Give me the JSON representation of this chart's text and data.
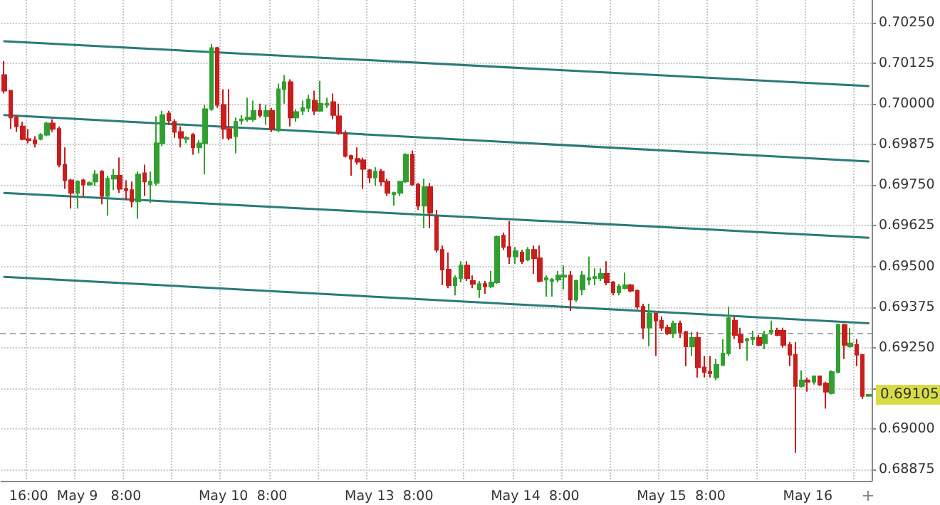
{
  "chart_data": {
    "type": "candlestick",
    "categories": [
      null,
      null,
      null,
      null,
      "16:00",
      null,
      null,
      null,
      null,
      null,
      null,
      null,
      "May 9",
      null,
      null,
      null,
      null,
      null,
      null,
      null,
      "8:00",
      null,
      null,
      null,
      null,
      null,
      null,
      null,
      null,
      null,
      null,
      null,
      null,
      null,
      null,
      null,
      "May 10",
      null,
      null,
      null,
      null,
      null,
      null,
      null,
      "8:00",
      null,
      null,
      null,
      null,
      null,
      null,
      null,
      null,
      null,
      null,
      null,
      null,
      null,
      null,
      null,
      "May 13",
      null,
      null,
      null,
      null,
      null,
      null,
      null,
      "8:00",
      null,
      null,
      null,
      null,
      null,
      null,
      null,
      null,
      null,
      null,
      null,
      null,
      null,
      null,
      null,
      "May 14",
      null,
      null,
      null,
      null,
      null,
      null,
      null,
      "8:00",
      null,
      null,
      null,
      null,
      null,
      null,
      null,
      null,
      null,
      null,
      null,
      null,
      null,
      null,
      null,
      "May 15",
      null,
      null,
      null,
      null,
      null,
      null,
      null,
      "8:00",
      null,
      null,
      null,
      null,
      null,
      null,
      null,
      null,
      null,
      null,
      null,
      null,
      null,
      null,
      null,
      "May 16",
      null,
      null,
      null,
      null,
      null,
      null,
      null,
      null,
      null,
      null
    ],
    "ohlc": [
      [
        0.70089,
        0.70132,
        0.70032,
        0.70041
      ],
      [
        0.70041,
        0.70041,
        0.69923,
        0.69958
      ],
      [
        0.69958,
        0.69966,
        0.69914,
        0.69931
      ],
      [
        0.69931,
        0.69945,
        0.69888,
        0.69892
      ],
      [
        0.69892,
        0.69923,
        0.69879,
        0.69888
      ],
      [
        0.69888,
        0.69901,
        0.69866,
        0.69879
      ],
      [
        0.69892,
        0.6991,
        0.69888,
        0.69905
      ],
      [
        0.69905,
        0.69945,
        0.69901,
        0.6994
      ],
      [
        0.6994,
        0.69953,
        0.69914,
        0.69923
      ],
      [
        0.69923,
        0.69931,
        0.69805,
        0.69813
      ],
      [
        0.69813,
        0.69866,
        0.69739,
        0.69765
      ],
      [
        0.69765,
        0.6977,
        0.69678,
        0.69726
      ],
      [
        0.69726,
        0.69765,
        0.69678,
        0.69761
      ],
      [
        0.69765,
        0.6977,
        0.69713,
        0.69752
      ],
      [
        0.69752,
        0.69761,
        0.69748,
        0.69757
      ],
      [
        0.69761,
        0.69796,
        0.69748,
        0.69783
      ],
      [
        0.69792,
        0.69796,
        0.69691,
        0.69717
      ],
      [
        0.69717,
        0.69779,
        0.69656,
        0.6977
      ],
      [
        0.6977,
        0.698,
        0.69735,
        0.69779
      ],
      [
        0.69779,
        0.69835,
        0.69726,
        0.69739
      ],
      [
        0.69739,
        0.69765,
        0.69704,
        0.69735
      ],
      [
        0.69735,
        0.69761,
        0.69682,
        0.697
      ],
      [
        0.697,
        0.69792,
        0.69647,
        0.69783
      ],
      [
        0.69787,
        0.69813,
        0.69717,
        0.69761
      ],
      [
        0.69752,
        0.69792,
        0.69695,
        0.69761
      ],
      [
        0.69757,
        0.69962,
        0.69748,
        0.69879
      ],
      [
        0.69879,
        0.69979,
        0.6987,
        0.69966
      ],
      [
        0.69971,
        0.69979,
        0.69936,
        0.69949
      ],
      [
        0.69945,
        0.69953,
        0.69896,
        0.69914
      ],
      [
        0.69914,
        0.69931,
        0.69866,
        0.69896
      ],
      [
        0.69892,
        0.69901,
        0.69879,
        0.69896
      ],
      [
        0.69905,
        0.6991,
        0.69844,
        0.69866
      ],
      [
        0.69866,
        0.69888,
        0.69848,
        0.69879
      ],
      [
        0.69879,
        0.69997,
        0.69783,
        0.69984
      ],
      [
        0.69984,
        0.70185,
        0.69979,
        0.70172
      ],
      [
        0.70172,
        0.70176,
        0.69988,
        0.69997
      ],
      [
        0.69997,
        0.70045,
        0.69892,
        0.69923
      ],
      [
        0.69923,
        0.70045,
        0.69888,
        0.69896
      ],
      [
        0.69901,
        0.69958,
        0.69848,
        0.69945
      ],
      [
        0.69949,
        0.69966,
        0.69936,
        0.69953
      ],
      [
        0.69953,
        0.70019,
        0.69945,
        0.69958
      ],
      [
        0.69953,
        0.7001,
        0.69945,
        0.69979
      ],
      [
        0.69979,
        0.70001,
        0.69958,
        0.69966
      ],
      [
        0.69962,
        0.69997,
        0.69936,
        0.69979
      ],
      [
        0.69979,
        0.69988,
        0.69914,
        0.69923
      ],
      [
        0.69918,
        0.70063,
        0.69914,
        0.70045
      ],
      [
        0.70045,
        0.70089,
        0.70001,
        0.70067
      ],
      [
        0.70067,
        0.70076,
        0.69931,
        0.69958
      ],
      [
        0.69958,
        0.69984,
        0.69945,
        0.69975
      ],
      [
        0.69979,
        0.7001,
        0.69966,
        0.69988
      ],
      [
        0.69988,
        0.70028,
        0.69975,
        0.70014
      ],
      [
        0.7001,
        0.70041,
        0.69966,
        0.69979
      ],
      [
        0.69979,
        0.70071,
        0.69975,
        0.70001
      ],
      [
        0.69997,
        0.70019,
        0.69988,
        0.70001
      ],
      [
        0.70006,
        0.70032,
        0.69953,
        0.69966
      ],
      [
        0.69962,
        0.70001,
        0.69905,
        0.6991
      ],
      [
        0.6991,
        0.69918,
        0.69835,
        0.6984
      ],
      [
        0.6984,
        0.69844,
        0.69779,
        0.69831
      ],
      [
        0.69831,
        0.69866,
        0.69813,
        0.69822
      ],
      [
        0.69827,
        0.69835,
        0.69739,
        0.698
      ],
      [
        0.69796,
        0.698,
        0.69757,
        0.69774
      ],
      [
        0.69774,
        0.69805,
        0.69748,
        0.69792
      ],
      [
        0.69792,
        0.698,
        0.69748,
        0.69761
      ],
      [
        0.69761,
        0.6977,
        0.69717,
        0.69726
      ],
      [
        0.69722,
        0.6973,
        0.69687,
        0.69726
      ],
      [
        0.69726,
        0.69761,
        0.69717,
        0.69761
      ],
      [
        0.69761,
        0.69848,
        0.69757,
        0.69844
      ],
      [
        0.69844,
        0.69857,
        0.69748,
        0.69752
      ],
      [
        0.69752,
        0.69757,
        0.69674,
        0.69687
      ],
      [
        0.69687,
        0.6977,
        0.69617,
        0.69744
      ],
      [
        0.69744,
        0.69757,
        0.69617,
        0.69665
      ],
      [
        0.69652,
        0.69674,
        0.69543,
        0.69551
      ],
      [
        0.69551,
        0.69564,
        0.69442,
        0.6949
      ],
      [
        0.6949,
        0.69543,
        0.69433,
        0.69442
      ],
      [
        0.69442,
        0.69472,
        0.69411,
        0.69464
      ],
      [
        0.69464,
        0.69516,
        0.69451,
        0.69503
      ],
      [
        0.69503,
        0.69516,
        0.69455,
        0.69464
      ],
      [
        0.69455,
        0.69472,
        0.69433,
        0.69446
      ],
      [
        0.69429,
        0.69455,
        0.69403,
        0.69446
      ],
      [
        0.69446,
        0.69455,
        0.69416,
        0.69438
      ],
      [
        0.69438,
        0.69486,
        0.69433,
        0.69451
      ],
      [
        0.69451,
        0.69595,
        0.69446,
        0.69591
      ],
      [
        0.69595,
        0.69604,
        0.69551,
        0.6956
      ],
      [
        0.6956,
        0.69639,
        0.69508,
        0.6953
      ],
      [
        0.6953,
        0.6956,
        0.69508,
        0.69547
      ],
      [
        0.69543,
        0.69551,
        0.69508,
        0.69516
      ],
      [
        0.69521,
        0.6956,
        0.69516,
        0.69551
      ],
      [
        0.69551,
        0.69564,
        0.69477,
        0.69525
      ],
      [
        0.69525,
        0.69564,
        0.69451,
        0.69455
      ],
      [
        0.69459,
        0.69472,
        0.69407,
        0.69464
      ],
      [
        0.69455,
        0.69464,
        0.69407,
        0.69459
      ],
      [
        0.69459,
        0.69486,
        0.69451,
        0.69472
      ],
      [
        0.69468,
        0.69503,
        0.69429,
        0.69472
      ],
      [
        0.69472,
        0.69486,
        0.69363,
        0.69398
      ],
      [
        0.69398,
        0.69459,
        0.6939,
        0.69455
      ],
      [
        0.69429,
        0.69486,
        0.69411,
        0.69472
      ],
      [
        0.69459,
        0.6953,
        0.69442,
        0.69464
      ],
      [
        0.69464,
        0.69494,
        0.69442,
        0.69468
      ],
      [
        0.69464,
        0.69494,
        0.69455,
        0.69477
      ],
      [
        0.69477,
        0.69516,
        0.69442,
        0.69451
      ],
      [
        0.69451,
        0.69455,
        0.69411,
        0.6942
      ],
      [
        0.6942,
        0.69446,
        0.69411,
        0.69438
      ],
      [
        0.69433,
        0.69481,
        0.69429,
        0.69442
      ],
      [
        0.69442,
        0.69446,
        0.6942,
        0.69425
      ],
      [
        0.69425,
        0.69429,
        0.69368,
        0.69376
      ],
      [
        0.69376,
        0.69385,
        0.69276,
        0.69311
      ],
      [
        0.69311,
        0.69385,
        0.69254,
        0.69355
      ],
      [
        0.69355,
        0.69355,
        0.69224,
        0.69333
      ],
      [
        0.69333,
        0.69346,
        0.69302,
        0.69311
      ],
      [
        0.69311,
        0.6932,
        0.69289,
        0.69294
      ],
      [
        0.69294,
        0.69333,
        0.6928,
        0.69324
      ],
      [
        0.69324,
        0.69333,
        0.6928,
        0.69298
      ],
      [
        0.69298,
        0.69302,
        0.69193,
        0.69254
      ],
      [
        0.69254,
        0.69298,
        0.69224,
        0.6928
      ],
      [
        0.6928,
        0.69298,
        0.69158,
        0.69189
      ],
      [
        0.69189,
        0.69224,
        0.69158,
        0.69175
      ],
      [
        0.69175,
        0.69224,
        0.69158,
        0.69171
      ],
      [
        0.69158,
        0.69215,
        0.69149,
        0.69197
      ],
      [
        0.69197,
        0.69276,
        0.69193,
        0.69232
      ],
      [
        0.69232,
        0.69376,
        0.69224,
        0.69341
      ],
      [
        0.69333,
        0.69346,
        0.69276,
        0.69289
      ],
      [
        0.69289,
        0.69311,
        0.69245,
        0.69267
      ],
      [
        0.69272,
        0.6928,
        0.6921,
        0.69276
      ],
      [
        0.69276,
        0.69302,
        0.69258,
        0.6928
      ],
      [
        0.6928,
        0.69289,
        0.69254,
        0.69258
      ],
      [
        0.69263,
        0.69302,
        0.69245,
        0.69289
      ],
      [
        0.69298,
        0.69333,
        0.69289,
        0.69302
      ],
      [
        0.69302,
        0.69311,
        0.69285,
        0.69289
      ],
      [
        0.69302,
        0.69311,
        0.6925,
        0.69258
      ],
      [
        0.69258,
        0.69267,
        0.69193,
        0.69228
      ],
      [
        0.69228,
        0.69267,
        0.68926,
        0.69132
      ],
      [
        0.69132,
        0.6918,
        0.69127,
        0.69149
      ],
      [
        0.69149,
        0.69158,
        0.69114,
        0.69145
      ],
      [
        0.69145,
        0.69162,
        0.69136,
        0.69162
      ],
      [
        0.69162,
        0.69162,
        0.69132,
        0.69136
      ],
      [
        0.6914,
        0.69145,
        0.69062,
        0.69114
      ],
      [
        0.6911,
        0.6918,
        0.69106,
        0.69175
      ],
      [
        0.69175,
        0.69324,
        0.69171,
        0.6932
      ],
      [
        0.6932,
        0.69324,
        0.69215,
        0.69258
      ],
      [
        0.69254,
        0.69311,
        0.6925,
        0.69263
      ],
      [
        0.69258,
        0.69276,
        0.69193,
        0.69228
      ],
      [
        0.69228,
        0.69228,
        0.69092,
        0.69101
      ],
      [
        0.69101,
        0.69106,
        0.69101,
        0.69105
      ]
    ],
    "colors": [
      "#c81e1e",
      "#c81e1e",
      "#c81e1e",
      "#c81e1e",
      "#c81e1e",
      "#c81e1e",
      "#30a030",
      "#30a030",
      "#c81e1e",
      "#c81e1e",
      "#c81e1e",
      "#c81e1e",
      "#30a030",
      "#c81e1e",
      "#30a030",
      "#30a030",
      "#c81e1e",
      "#30a030",
      "#30a030",
      "#c81e1e",
      "#c81e1e",
      "#c81e1e",
      "#30a030",
      "#c81e1e",
      "#30a030",
      "#30a030",
      "#30a030",
      "#c81e1e",
      "#c81e1e",
      "#c81e1e",
      "#30a030",
      "#c81e1e",
      "#30a030",
      "#30a030",
      "#30a030",
      "#c81e1e",
      "#c81e1e",
      "#c81e1e",
      "#30a030",
      "#30a030",
      "#30a030",
      "#30a030",
      "#c81e1e",
      "#30a030",
      "#c81e1e",
      "#30a030",
      "#30a030",
      "#c81e1e",
      "#30a030",
      "#30a030",
      "#30a030",
      "#c81e1e",
      "#30a030",
      "#30a030",
      "#c81e1e",
      "#c81e1e",
      "#c81e1e",
      "#c81e1e",
      "#c81e1e",
      "#c81e1e",
      "#c81e1e",
      "#30a030",
      "#c81e1e",
      "#c81e1e",
      "#30a030",
      "#30a030",
      "#30a030",
      "#c81e1e",
      "#c81e1e",
      "#30a030",
      "#c81e1e",
      "#c81e1e",
      "#c81e1e",
      "#c81e1e",
      "#30a030",
      "#30a030",
      "#c81e1e",
      "#c81e1e",
      "#30a030",
      "#c81e1e",
      "#30a030",
      "#30a030",
      "#c81e1e",
      "#c81e1e",
      "#30a030",
      "#c81e1e",
      "#30a030",
      "#c81e1e",
      "#c81e1e",
      "#30a030",
      "#30a030",
      "#30a030",
      "#30a030",
      "#c81e1e",
      "#30a030",
      "#30a030",
      "#30a030",
      "#30a030",
      "#30a030",
      "#c81e1e",
      "#c81e1e",
      "#30a030",
      "#30a030",
      "#c81e1e",
      "#c81e1e",
      "#c81e1e",
      "#30a030",
      "#c81e1e",
      "#c81e1e",
      "#c81e1e",
      "#30a030",
      "#c81e1e",
      "#c81e1e",
      "#30a030",
      "#c81e1e",
      "#c81e1e",
      "#c81e1e",
      "#30a030",
      "#30a030",
      "#30a030",
      "#c81e1e",
      "#c81e1e",
      "#30a030",
      "#30a030",
      "#c81e1e",
      "#30a030",
      "#30a030",
      "#c81e1e",
      "#c81e1e",
      "#c81e1e",
      "#c81e1e",
      "#30a030",
      "#c81e1e",
      "#30a030",
      "#c81e1e",
      "#c81e1e",
      "#30a030",
      "#30a030",
      "#c81e1e",
      "#30a030",
      "#c81e1e",
      "#c81e1e",
      "#30a030"
    ],
    "series": [
      {
        "type": "line",
        "color": "#2b7a78",
        "values": [
          0.70193,
          null,
          null,
          null,
          null,
          null,
          null,
          null,
          null,
          null,
          null,
          null,
          null,
          null,
          null,
          null,
          null,
          null,
          null,
          null,
          null,
          null,
          null,
          null,
          null,
          null,
          null,
          null,
          null,
          null,
          null,
          null,
          null,
          null,
          null,
          null,
          null,
          null,
          null,
          null,
          null,
          null,
          null,
          null,
          null,
          null,
          null,
          null,
          null,
          null,
          null,
          null,
          null,
          null,
          null,
          null,
          null,
          null,
          null,
          null,
          null,
          null,
          null,
          null,
          null,
          null,
          null,
          null,
          null,
          null,
          null,
          null,
          null,
          null,
          null,
          null,
          null,
          null,
          null,
          null,
          null,
          null,
          null,
          null,
          null,
          null,
          null,
          null,
          null,
          null,
          null,
          null,
          null,
          null,
          null,
          null,
          null,
          null,
          null,
          null,
          null,
          null,
          null,
          null,
          null,
          null,
          null,
          null,
          null,
          null,
          null,
          null,
          null,
          null,
          null,
          null,
          null,
          null,
          null,
          null,
          null,
          null,
          null,
          null,
          null,
          null,
          null,
          null,
          null,
          null,
          null,
          null,
          null,
          null,
          null,
          null,
          null,
          null,
          null,
          null,
          null,
          null,
          0.70055
        ]
      },
      {
        "type": "line",
        "color": "#2b7a78",
        "values": [
          0.69966,
          null,
          null,
          null,
          null,
          null,
          null,
          null,
          null,
          null,
          null,
          null,
          null,
          null,
          null,
          null,
          null,
          null,
          null,
          null,
          null,
          null,
          null,
          null,
          null,
          null,
          null,
          null,
          null,
          null,
          null,
          null,
          null,
          null,
          null,
          null,
          null,
          null,
          null,
          null,
          null,
          null,
          null,
          null,
          null,
          null,
          null,
          null,
          null,
          null,
          null,
          null,
          null,
          null,
          null,
          null,
          null,
          null,
          null,
          null,
          null,
          null,
          null,
          null,
          null,
          null,
          null,
          null,
          null,
          null,
          null,
          null,
          null,
          null,
          null,
          null,
          null,
          null,
          null,
          null,
          null,
          null,
          null,
          null,
          null,
          null,
          null,
          null,
          null,
          null,
          null,
          null,
          null,
          null,
          null,
          null,
          null,
          null,
          null,
          null,
          null,
          null,
          null,
          null,
          null,
          null,
          null,
          null,
          null,
          null,
          null,
          null,
          null,
          null,
          null,
          null,
          null,
          null,
          null,
          null,
          null,
          null,
          null,
          null,
          null,
          null,
          null,
          null,
          null,
          null,
          null,
          null,
          null,
          null,
          null,
          null,
          null,
          null,
          null,
          null,
          null,
          null,
          0.69823
        ]
      },
      {
        "type": "line",
        "color": "#2b7a78",
        "values": [
          0.69726,
          null,
          null,
          null,
          null,
          null,
          null,
          null,
          null,
          null,
          null,
          null,
          null,
          null,
          null,
          null,
          null,
          null,
          null,
          null,
          null,
          null,
          null,
          null,
          null,
          null,
          null,
          null,
          null,
          null,
          null,
          null,
          null,
          null,
          null,
          null,
          null,
          null,
          null,
          null,
          null,
          null,
          null,
          null,
          null,
          null,
          null,
          null,
          null,
          null,
          null,
          null,
          null,
          null,
          null,
          null,
          null,
          null,
          null,
          null,
          null,
          null,
          null,
          null,
          null,
          null,
          null,
          null,
          null,
          null,
          null,
          null,
          null,
          null,
          null,
          null,
          null,
          null,
          null,
          null,
          null,
          null,
          null,
          null,
          null,
          null,
          null,
          null,
          null,
          null,
          null,
          null,
          null,
          null,
          null,
          null,
          null,
          null,
          null,
          null,
          null,
          null,
          null,
          null,
          null,
          null,
          null,
          null,
          null,
          null,
          null,
          null,
          null,
          null,
          null,
          null,
          null,
          null,
          null,
          null,
          null,
          null,
          null,
          null,
          null,
          null,
          null,
          null,
          null,
          null,
          null,
          null,
          null,
          null,
          null,
          null,
          null,
          null,
          null,
          null,
          null,
          null,
          0.69588
        ]
      },
      {
        "type": "line",
        "color": "#2b7a78",
        "values": [
          0.69468,
          null,
          null,
          null,
          null,
          null,
          null,
          null,
          null,
          null,
          null,
          null,
          null,
          null,
          null,
          null,
          null,
          null,
          null,
          null,
          null,
          null,
          null,
          null,
          null,
          null,
          null,
          null,
          null,
          null,
          null,
          null,
          null,
          null,
          null,
          null,
          null,
          null,
          null,
          null,
          null,
          null,
          null,
          null,
          null,
          null,
          null,
          null,
          null,
          null,
          null,
          null,
          null,
          null,
          null,
          null,
          null,
          null,
          null,
          null,
          null,
          null,
          null,
          null,
          null,
          null,
          null,
          null,
          null,
          null,
          null,
          null,
          null,
          null,
          null,
          null,
          null,
          null,
          null,
          null,
          null,
          null,
          null,
          null,
          null,
          null,
          null,
          null,
          null,
          null,
          null,
          null,
          null,
          null,
          null,
          null,
          null,
          null,
          null,
          null,
          null,
          null,
          null,
          null,
          null,
          null,
          null,
          null,
          null,
          null,
          null,
          null,
          null,
          null,
          null,
          null,
          null,
          null,
          null,
          null,
          null,
          null,
          null,
          null,
          null,
          null,
          null,
          null,
          null,
          null,
          null,
          null,
          null,
          null,
          null,
          null,
          null,
          null,
          null,
          null,
          null,
          null,
          0.69325
        ]
      }
    ],
    "ylim": [
      0.6884,
      0.7032
    ],
    "yticks": [
      {
        "value": 0.68875,
        "label": "0.68875"
      },
      {
        "value": 0.69,
        "label": "0.69000"
      },
      {
        "value": 0.69125,
        "label": null
      },
      {
        "value": 0.6925,
        "label": "0.69250"
      },
      {
        "value": 0.69375,
        "label": "0.69375"
      },
      {
        "value": 0.695,
        "label": "0.69500"
      },
      {
        "value": 0.69625,
        "label": "0.69625"
      },
      {
        "value": 0.6975,
        "label": "0.69750"
      },
      {
        "value": 0.69875,
        "label": "0.69875"
      },
      {
        "value": 0.7,
        "label": "0.70000"
      },
      {
        "value": 0.70125,
        "label": "0.70125"
      },
      {
        "value": 0.7025,
        "label": "0.70250"
      }
    ],
    "grid": true,
    "ref_lines": [
      {
        "axis": "y",
        "value": 0.69293,
        "color": "#aaaaaa",
        "line_style": "dashed"
      }
    ],
    "annotations": [
      "0.69105"
    ]
  }
}
